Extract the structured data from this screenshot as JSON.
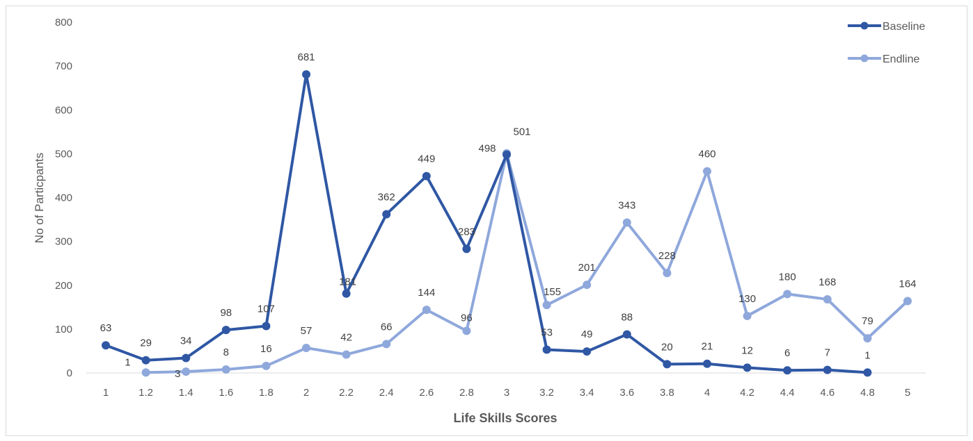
{
  "chart_data": {
    "type": "line",
    "title": "",
    "xlabel": "Life Skills Scores",
    "ylabel": "No of Particpants",
    "categories": [
      "1",
      "1.2",
      "1.4",
      "1.6",
      "1.8",
      "2",
      "2.2",
      "2.4",
      "2.6",
      "2.8",
      "3",
      "3.2",
      "3.4",
      "3.6",
      "3.8",
      "4",
      "4.2",
      "4.4",
      "4.6",
      "4.8",
      "5"
    ],
    "yticks": [
      "0",
      "100",
      "200",
      "300",
      "400",
      "500",
      "600",
      "700",
      "800"
    ],
    "ylim": [
      0,
      800
    ],
    "grid": false,
    "legend_position": "top-right",
    "series": [
      {
        "name": "Baseline",
        "color": "#2f57a4",
        "values": [
          63,
          29,
          34,
          98,
          107,
          681,
          181,
          362,
          449,
          283,
          498,
          53,
          49,
          88,
          20,
          21,
          12,
          6,
          7,
          1,
          null
        ]
      },
      {
        "name": "Endline",
        "color": "#8fa8dc",
        "values": [
          null,
          1,
          3,
          8,
          16,
          57,
          42,
          66,
          144,
          96,
          501,
          155,
          201,
          343,
          228,
          460,
          130,
          180,
          168,
          79,
          164
        ]
      }
    ]
  }
}
